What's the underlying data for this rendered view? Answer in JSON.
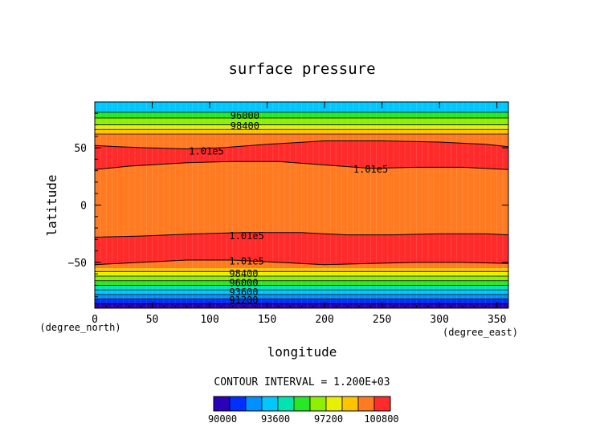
{
  "chart_data": {
    "type": "heatmap",
    "title": "surface pressure",
    "xlabel": "longitude",
    "ylabel": "latitude",
    "x_unit": "(degree_east)",
    "y_unit": "(degree_north)",
    "xlim": [
      0,
      360
    ],
    "ylim": [
      -90,
      90
    ],
    "x_ticks": [
      0,
      50,
      100,
      150,
      200,
      250,
      300,
      350
    ],
    "y_ticks": [
      -50,
      0,
      50
    ],
    "contour_interval_text": "CONTOUR INTERVAL = 1.200E+03",
    "contour_interval": 1200,
    "contour_labels": [
      {
        "text": "96000",
        "lon": 118,
        "lat": 78
      },
      {
        "text": "98400",
        "lon": 118,
        "lat": 69
      },
      {
        "text": "1.01e5",
        "lon": 82,
        "lat": 47
      },
      {
        "text": "1.01e5",
        "lon": 225,
        "lat": 31
      },
      {
        "text": "1.01e5",
        "lon": 117,
        "lat": -27
      },
      {
        "text": "1.01e5",
        "lon": 117,
        "lat": -49
      },
      {
        "text": "98400",
        "lon": 117,
        "lat": -60
      },
      {
        "text": "96000",
        "lon": 117,
        "lat": -68
      },
      {
        "text": "93600",
        "lon": 117,
        "lat": -76
      },
      {
        "text": "91200",
        "lon": 117,
        "lat": -83
      }
    ],
    "colorbar": {
      "tick_labels": [
        "90000",
        "93600",
        "97200",
        "100800"
      ],
      "levels": [
        89400,
        90600,
        91800,
        93000,
        94200,
        95400,
        96600,
        97800,
        99000,
        100200,
        101400
      ],
      "colors": [
        "#2a00b8",
        "#0030ff",
        "#0090ff",
        "#00c8ff",
        "#00e4b0",
        "#28e628",
        "#8cf000",
        "#e8f000",
        "#ffc400",
        "#ff7a20",
        "#ff2a2a"
      ]
    },
    "bands": [
      {
        "lat_from": 81,
        "lat_to": 90,
        "color": "#00c8ff"
      },
      {
        "lat_from": 76,
        "lat_to": 81,
        "color": "#28e628"
      },
      {
        "lat_from": 70,
        "lat_to": 76,
        "color": "#8cf000"
      },
      {
        "lat_from": 66,
        "lat_to": 70,
        "color": "#e8f000"
      },
      {
        "lat_from": 62,
        "lat_to": 66,
        "color": "#ffc400"
      },
      {
        "lat_from": -90,
        "lat_to": -86,
        "color": "#2a00b8"
      },
      {
        "lat_from": -86,
        "lat_to": -82,
        "color": "#0030ff"
      },
      {
        "lat_from": -82,
        "lat_to": -78,
        "color": "#0090ff"
      },
      {
        "lat_from": -78,
        "lat_to": -74,
        "color": "#00c8ff"
      },
      {
        "lat_from": -74,
        "lat_to": -70,
        "color": "#00e4b0"
      },
      {
        "lat_from": -70,
        "lat_to": -66,
        "color": "#28e628"
      },
      {
        "lat_from": -66,
        "lat_to": -62,
        "color": "#8cf000"
      },
      {
        "lat_from": -62,
        "lat_to": -58,
        "color": "#e8f000"
      },
      {
        "lat_from": -58,
        "lat_to": -55,
        "color": "#ffc400"
      }
    ],
    "background_color": "#ff7a20",
    "high_color": "#ff2a2a",
    "north_high_top": [
      [
        0,
        52
      ],
      [
        20,
        51
      ],
      [
        45,
        50
      ],
      [
        80,
        49
      ],
      [
        110,
        50
      ],
      [
        150,
        53
      ],
      [
        200,
        56
      ],
      [
        250,
        56
      ],
      [
        300,
        55
      ],
      [
        340,
        53
      ],
      [
        360,
        51
      ]
    ],
    "north_high_bottom": [
      [
        0,
        31
      ],
      [
        30,
        34
      ],
      [
        80,
        37
      ],
      [
        120,
        38
      ],
      [
        160,
        38
      ],
      [
        200,
        35
      ],
      [
        240,
        32
      ],
      [
        280,
        33
      ],
      [
        320,
        33
      ],
      [
        360,
        31
      ]
    ],
    "south_high_top": [
      [
        0,
        -28
      ],
      [
        40,
        -27
      ],
      [
        90,
        -25
      ],
      [
        130,
        -24
      ],
      [
        150,
        -24
      ],
      [
        180,
        -24
      ],
      [
        220,
        -26
      ],
      [
        260,
        -26
      ],
      [
        300,
        -25
      ],
      [
        340,
        -25
      ],
      [
        360,
        -26
      ]
    ],
    "south_high_bottom": [
      [
        0,
        -52
      ],
      [
        40,
        -50
      ],
      [
        80,
        -48
      ],
      [
        120,
        -48
      ],
      [
        160,
        -50
      ],
      [
        200,
        -52
      ],
      [
        240,
        -51
      ],
      [
        280,
        -50
      ],
      [
        320,
        -50
      ],
      [
        360,
        -51
      ]
    ]
  }
}
